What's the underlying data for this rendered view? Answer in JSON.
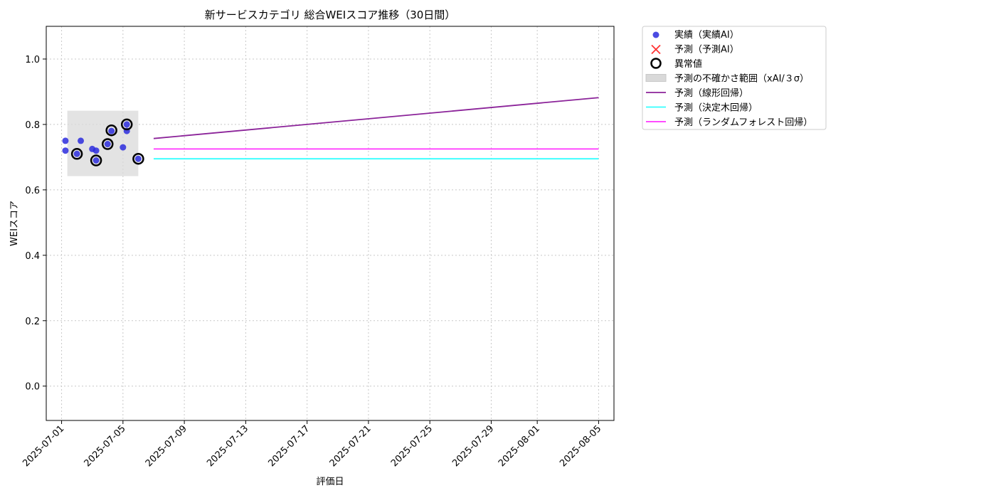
{
  "chart_data": {
    "type": "line",
    "title": "新サービスカテゴリ 総合WEIスコア推移（30日間）",
    "xlabel": "評価日",
    "ylabel": "WEIスコア",
    "x_type": "date",
    "xlim": [
      "2025-06-30",
      "2025-08-06"
    ],
    "ylim": [
      -0.105,
      1.1
    ],
    "x_ticks": [
      "2025-07-01",
      "2025-07-05",
      "2025-07-09",
      "2025-07-13",
      "2025-07-17",
      "2025-07-21",
      "2025-07-25",
      "2025-07-29",
      "2025-08-01",
      "2025-08-05"
    ],
    "y_ticks": [
      0.0,
      0.2,
      0.4,
      0.6,
      0.8,
      1.0
    ],
    "grid": true,
    "legend_position": "outside-top-right",
    "colors": {
      "actual": "#2b2bdd",
      "predicted_x": "#ff3333",
      "anomaly": "#000000",
      "uncertainty": "#d9d9d9",
      "linear": "#8b2399",
      "tree": "#33ffff",
      "forest": "#ff33ff"
    },
    "series": [
      {
        "name": "実績（実績AI）",
        "kind": "scatter",
        "points": [
          {
            "x": "2025-07-01T06:00",
            "y": 0.75
          },
          {
            "x": "2025-07-01T06:00",
            "y": 0.72
          },
          {
            "x": "2025-07-02T00:00",
            "y": 0.71
          },
          {
            "x": "2025-07-02T06:00",
            "y": 0.75
          },
          {
            "x": "2025-07-03T00:00",
            "y": 0.725
          },
          {
            "x": "2025-07-03T06:00",
            "y": 0.72
          },
          {
            "x": "2025-07-03T06:00",
            "y": 0.69
          },
          {
            "x": "2025-07-04T00:00",
            "y": 0.74
          },
          {
            "x": "2025-07-04T06:00",
            "y": 0.78
          },
          {
            "x": "2025-07-05T00:00",
            "y": 0.73
          },
          {
            "x": "2025-07-05T06:00",
            "y": 0.8
          },
          {
            "x": "2025-07-05T06:00",
            "y": 0.78
          },
          {
            "x": "2025-07-06T00:00",
            "y": 0.695
          }
        ]
      },
      {
        "name": "予測（予測AI）",
        "kind": "marker-x",
        "points": []
      },
      {
        "name": "異常値",
        "kind": "ring",
        "points": [
          {
            "x": "2025-07-02T00:00",
            "y": 0.71
          },
          {
            "x": "2025-07-03T06:00",
            "y": 0.69
          },
          {
            "x": "2025-07-04T00:00",
            "y": 0.74
          },
          {
            "x": "2025-07-04T06:00",
            "y": 0.782
          },
          {
            "x": "2025-07-05T06:00",
            "y": 0.8
          },
          {
            "x": "2025-07-06T00:00",
            "y": 0.695
          }
        ]
      },
      {
        "name": "予測の不確かさ範囲（xAI/３σ）",
        "kind": "band",
        "x0": "2025-07-01T09:00",
        "x1": "2025-07-06T00:00",
        "y0": 0.642,
        "y1": 0.842
      },
      {
        "name": "予測（線形回帰）",
        "kind": "line",
        "points": [
          {
            "x": "2025-07-07",
            "y": 0.757
          },
          {
            "x": "2025-08-05",
            "y": 0.882
          }
        ]
      },
      {
        "name": "予測（決定木回帰）",
        "kind": "line",
        "points": [
          {
            "x": "2025-07-07",
            "y": 0.695
          },
          {
            "x": "2025-08-05",
            "y": 0.695
          }
        ]
      },
      {
        "name": "予測（ランダムフォレスト回帰）",
        "kind": "line",
        "points": [
          {
            "x": "2025-07-07",
            "y": 0.725
          },
          {
            "x": "2025-08-05",
            "y": 0.725
          }
        ]
      }
    ]
  }
}
